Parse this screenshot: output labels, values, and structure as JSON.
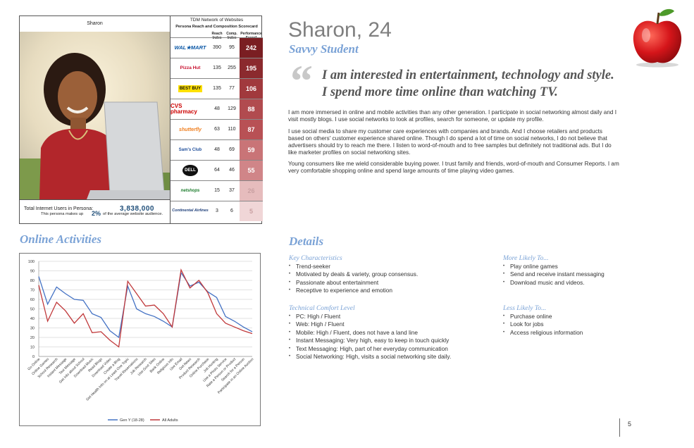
{
  "scorecard": {
    "persona_name": "Sharon",
    "title": "TDM Network of Websites",
    "subtitle": "Persona Reach and Composition Scorecard",
    "col_reach": "Reach Index",
    "col_comp": "Comp. Index",
    "col_score": "Performance Score*",
    "rows": [
      {
        "brand": "WAL★MART",
        "reach": "390",
        "comp": "95",
        "score": "242",
        "color": "#7a1e22"
      },
      {
        "brand": "Pizza Hut",
        "reach": "135",
        "comp": "255",
        "score": "195",
        "color": "#8b2a2e"
      },
      {
        "brand": "BEST BUY",
        "reach": "135",
        "comp": "77",
        "score": "106",
        "color": "#a1393d"
      },
      {
        "brand": "CVS pharmacy",
        "reach": "48",
        "comp": "129",
        "score": "88",
        "color": "#b14b4f"
      },
      {
        "brand": "shutterfly",
        "reach": "63",
        "comp": "110",
        "score": "87",
        "color": "#b85155"
      },
      {
        "brand": "Sam's Club",
        "reach": "48",
        "comp": "69",
        "score": "59",
        "color": "#c97477"
      },
      {
        "brand": "DELL",
        "reach": "64",
        "comp": "46",
        "score": "55",
        "color": "#d08588"
      },
      {
        "brand": "netshops",
        "reach": "15",
        "comp": "37",
        "score": "26",
        "color": "#e6bcbd"
      },
      {
        "brand": "Continental Airlines",
        "reach": "3",
        "comp": "6",
        "score": "5",
        "color": "#f0d6d7"
      }
    ],
    "total_label": "Total Internet Users in Persona:",
    "total_value": "3,838,000",
    "pct_prefix": "This persona makes up",
    "pct_value": "2%",
    "pct_suffix": "of the average website audience."
  },
  "header": {
    "name": "Sharon, 24",
    "tagline": "Savvy Student",
    "quote": "I am interested in entertainment, technology and style. I spend more time online than watching TV."
  },
  "paragraphs": [
    "I am more immersed in online and mobile activities than any other generation. I participate in social networking almost daily and I visit mostly blogs. I use social networks to look at profiles, search for someone, or update my profile.",
    "I use social media to share my customer care experiences with companies and brands. And I choose retailers and products based on others' customer experience shared online. Though I do spend a lot of time on social networks, I do not believe that advertisers should try to reach me there. I listen to word-of-mouth and to free samples but definitely not traditional ads. But I do like marketer profiles on social networking sites.",
    "Young consumers like me wield considerable buying power. I trust family and friends, word-of-mouth and Consumer Reports. I am very comfortable shopping online and spend large amounts of time playing video games."
  ],
  "details": {
    "heading": "Details",
    "key_heading": "Key Characteristics",
    "key_items": [
      "Trend-seeker",
      "Motivated by deals & variety, group consensus.",
      "Passionate about entertainment",
      "Receptive to experience and emotion"
    ],
    "tech_heading": "Technical Comfort Level",
    "tech_items": [
      "PC: High / Fluent",
      "Web: High / Fluent",
      "Mobile: High / Fluent, does not have a land line",
      "Instant Messaging: Very high, easy to keep in touch quickly",
      "Text Messaging: High, part of her everyday communication",
      "Social Networking: High, visits a social networking site daily."
    ],
    "more_heading": "More Likely To...",
    "more_items": [
      "Play online games",
      "Send and receive instant messaging",
      "Download music and videos."
    ],
    "less_heading": "Less Likely To...",
    "less_items": [
      "Purchase online",
      "Look for jobs",
      "Access religious information"
    ]
  },
  "online_heading": "Online Activities",
  "page_number": "5",
  "chart_data": {
    "type": "line",
    "title": "",
    "xlabel": "",
    "ylabel": "",
    "ylim": [
      0,
      100
    ],
    "yticks": [
      0,
      10,
      20,
      30,
      40,
      50,
      60,
      70,
      80,
      90,
      100
    ],
    "categories": [
      "Go Online",
      "Online Games",
      "School Research",
      "Instant Message",
      "Text Message",
      "Get Info about School",
      "Download Music",
      "Read Blogs",
      "Download Video",
      "Create a Blog",
      "Get Health Info on at Least One Topic",
      "Travel Reservations",
      "Job Research",
      "Use Govt Sites",
      "Bank Online",
      "Religious Info",
      "Use Email",
      "Get News",
      "Product Research",
      "Online Purchase",
      "Job Hunting",
      "Use a Photo Service",
      "Rate a Person or Product",
      "Search for a Person",
      "Participate in an Online Auction"
    ],
    "series": [
      {
        "name": "Gen Y (18-28)",
        "color": "#4472c4",
        "values": [
          84,
          55,
          73,
          66,
          60,
          59,
          45,
          41,
          27,
          20,
          74,
          50,
          45,
          42,
          37,
          31,
          88,
          74,
          78,
          68,
          62,
          42,
          37,
          31,
          26
        ]
      },
      {
        "name": "All Adults",
        "color": "#c0393b",
        "values": [
          75,
          37,
          57,
          48,
          35,
          45,
          25,
          26,
          17,
          10,
          79,
          66,
          53,
          54,
          45,
          31,
          91,
          72,
          80,
          67,
          45,
          35,
          31,
          27,
          24
        ]
      }
    ],
    "legend": "bottom",
    "grid": true
  }
}
